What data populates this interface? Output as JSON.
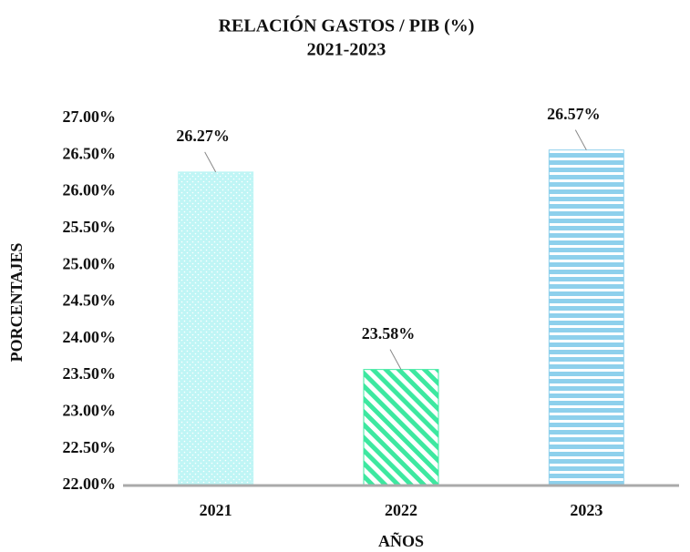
{
  "chart_data": {
    "type": "bar",
    "title": "RELACIÓN GASTOS / PIB (%)",
    "subtitle": "2021-2023",
    "x_label": "AÑOS",
    "y_label": "PORCENTAJES",
    "categories": [
      "2021",
      "2022",
      "2023"
    ],
    "values": [
      26.27,
      23.58,
      26.57
    ],
    "value_labels": [
      "26.27%",
      "23.58%",
      "26.57%"
    ],
    "colors": [
      "#bff5f5",
      "#3de8a0",
      "#8ed0ec"
    ],
    "patterns": [
      "dots",
      "diagonal",
      "horizontal"
    ],
    "ylim": [
      22,
      27
    ],
    "yticks": [
      {
        "value": 22,
        "label": "22.00%"
      },
      {
        "value": 22.5,
        "label": "22.50%"
      },
      {
        "value": 23,
        "label": "23.00%"
      },
      {
        "value": 23.5,
        "label": "23.50%"
      },
      {
        "value": 24,
        "label": "24.00%"
      },
      {
        "value": 24.5,
        "label": "24.50%"
      },
      {
        "value": 25,
        "label": "25.00%"
      },
      {
        "value": 25.5,
        "label": "25.50%"
      },
      {
        "value": 26,
        "label": "26.00%"
      },
      {
        "value": 26.5,
        "label": "26.50%"
      },
      {
        "value": 27,
        "label": "27.00%"
      }
    ],
    "grid": false
  }
}
